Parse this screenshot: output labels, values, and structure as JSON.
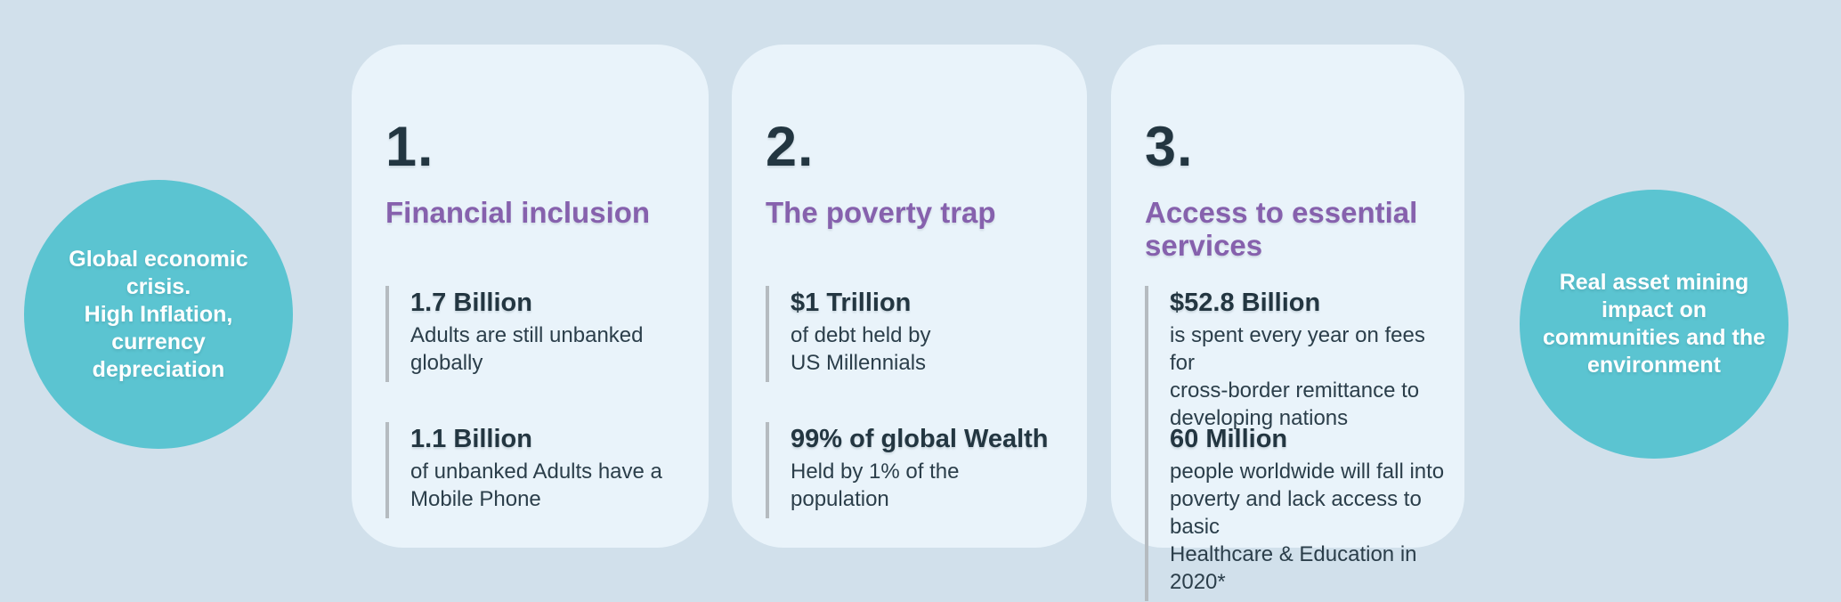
{
  "colors": {
    "background": "#d1e0eb",
    "card_background": "#e9f3fa",
    "circle_teal": "#5bc4d1",
    "heading_purple": "#8661ad",
    "text_navy": "#233641",
    "stat_bar_gray": "#b5bbc0",
    "circle_text_white": "#ffffff"
  },
  "left_circle": {
    "text": "Global economic\ncrisis.\nHigh Inflation,\ncurrency\ndepreciation"
  },
  "right_circle": {
    "text": "Real asset  mining\nimpact on\ncommunities and the\nenvironment"
  },
  "cards": [
    {
      "number": "1.",
      "heading": "Financial inclusion",
      "stats": [
        {
          "value": "1.7 Billion",
          "description": "Adults are still unbanked\nglobally"
        },
        {
          "value": "1.1 Billion",
          "description": "of unbanked Adults have a\nMobile Phone"
        }
      ]
    },
    {
      "number": "2.",
      "heading": "The poverty trap",
      "stats": [
        {
          "value": "$1 Trillion",
          "description": "of debt held by\nUS Millennials"
        },
        {
          "value": "99% of global Wealth",
          "description": "Held by 1% of the\npopulation"
        }
      ]
    },
    {
      "number": "3.",
      "heading": "Access to essential\nservices",
      "stats": [
        {
          "value": "$52.8 Billion",
          "description": "is spent every year on fees for\ncross-border remittance to\ndeveloping nations"
        },
        {
          "value": "60 Million",
          "description": "people worldwide will fall into\npoverty and lack access to basic\nHealthcare & Education in 2020*"
        }
      ]
    }
  ]
}
